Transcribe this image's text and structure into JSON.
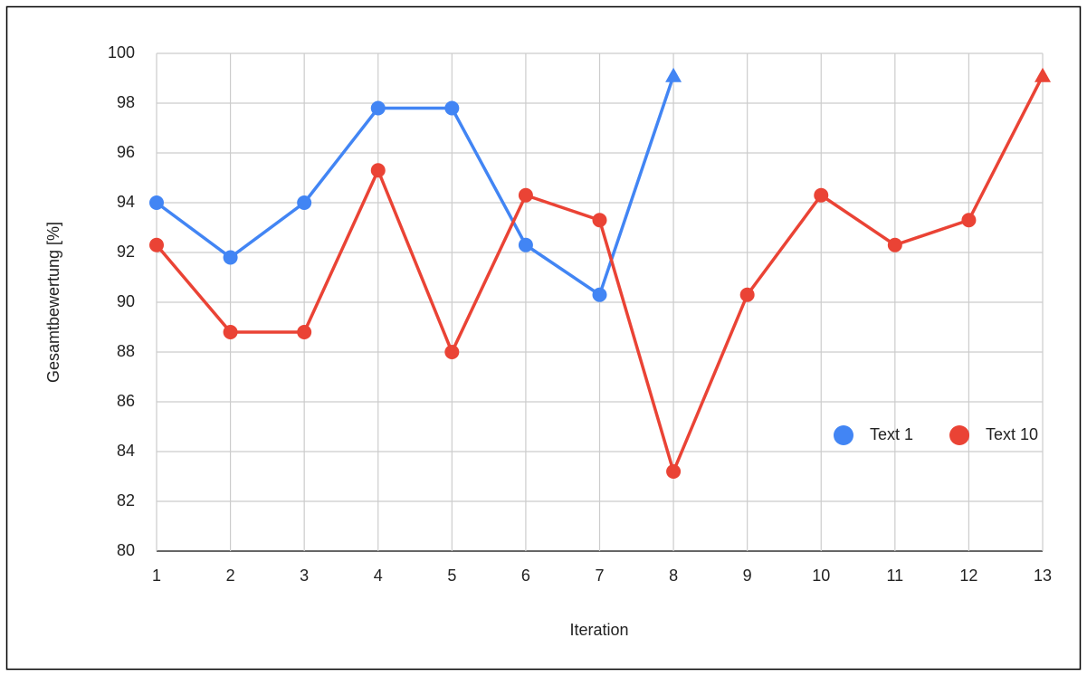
{
  "chart_data": {
    "type": "line",
    "x_label": "Iteration",
    "y_label": "Gesamtbewertung [%]",
    "x": [
      1,
      2,
      3,
      4,
      5,
      6,
      7,
      8,
      9,
      10,
      11,
      12,
      13
    ],
    "series": [
      {
        "name": "Text 1",
        "color": "#4285f4",
        "values": [
          94.0,
          91.8,
          94.0,
          97.8,
          97.8,
          92.3,
          90.3,
          99.1,
          null,
          null,
          null,
          null,
          null
        ]
      },
      {
        "name": "Text 10",
        "color": "#ea4335",
        "values": [
          92.3,
          88.8,
          88.8,
          95.3,
          88.0,
          94.3,
          93.3,
          83.2,
          90.3,
          94.3,
          92.3,
          93.3,
          99.1
        ]
      }
    ],
    "xlim": [
      1,
      13
    ],
    "xticks": [
      1,
      2,
      3,
      4,
      5,
      6,
      7,
      8,
      9,
      10,
      11,
      12,
      13
    ],
    "ylim": [
      80,
      100
    ],
    "yticks": [
      80,
      82,
      84,
      86,
      88,
      90,
      92,
      94,
      96,
      98,
      100
    ],
    "grid": true,
    "legend": "right",
    "last_marker": "triangle"
  }
}
